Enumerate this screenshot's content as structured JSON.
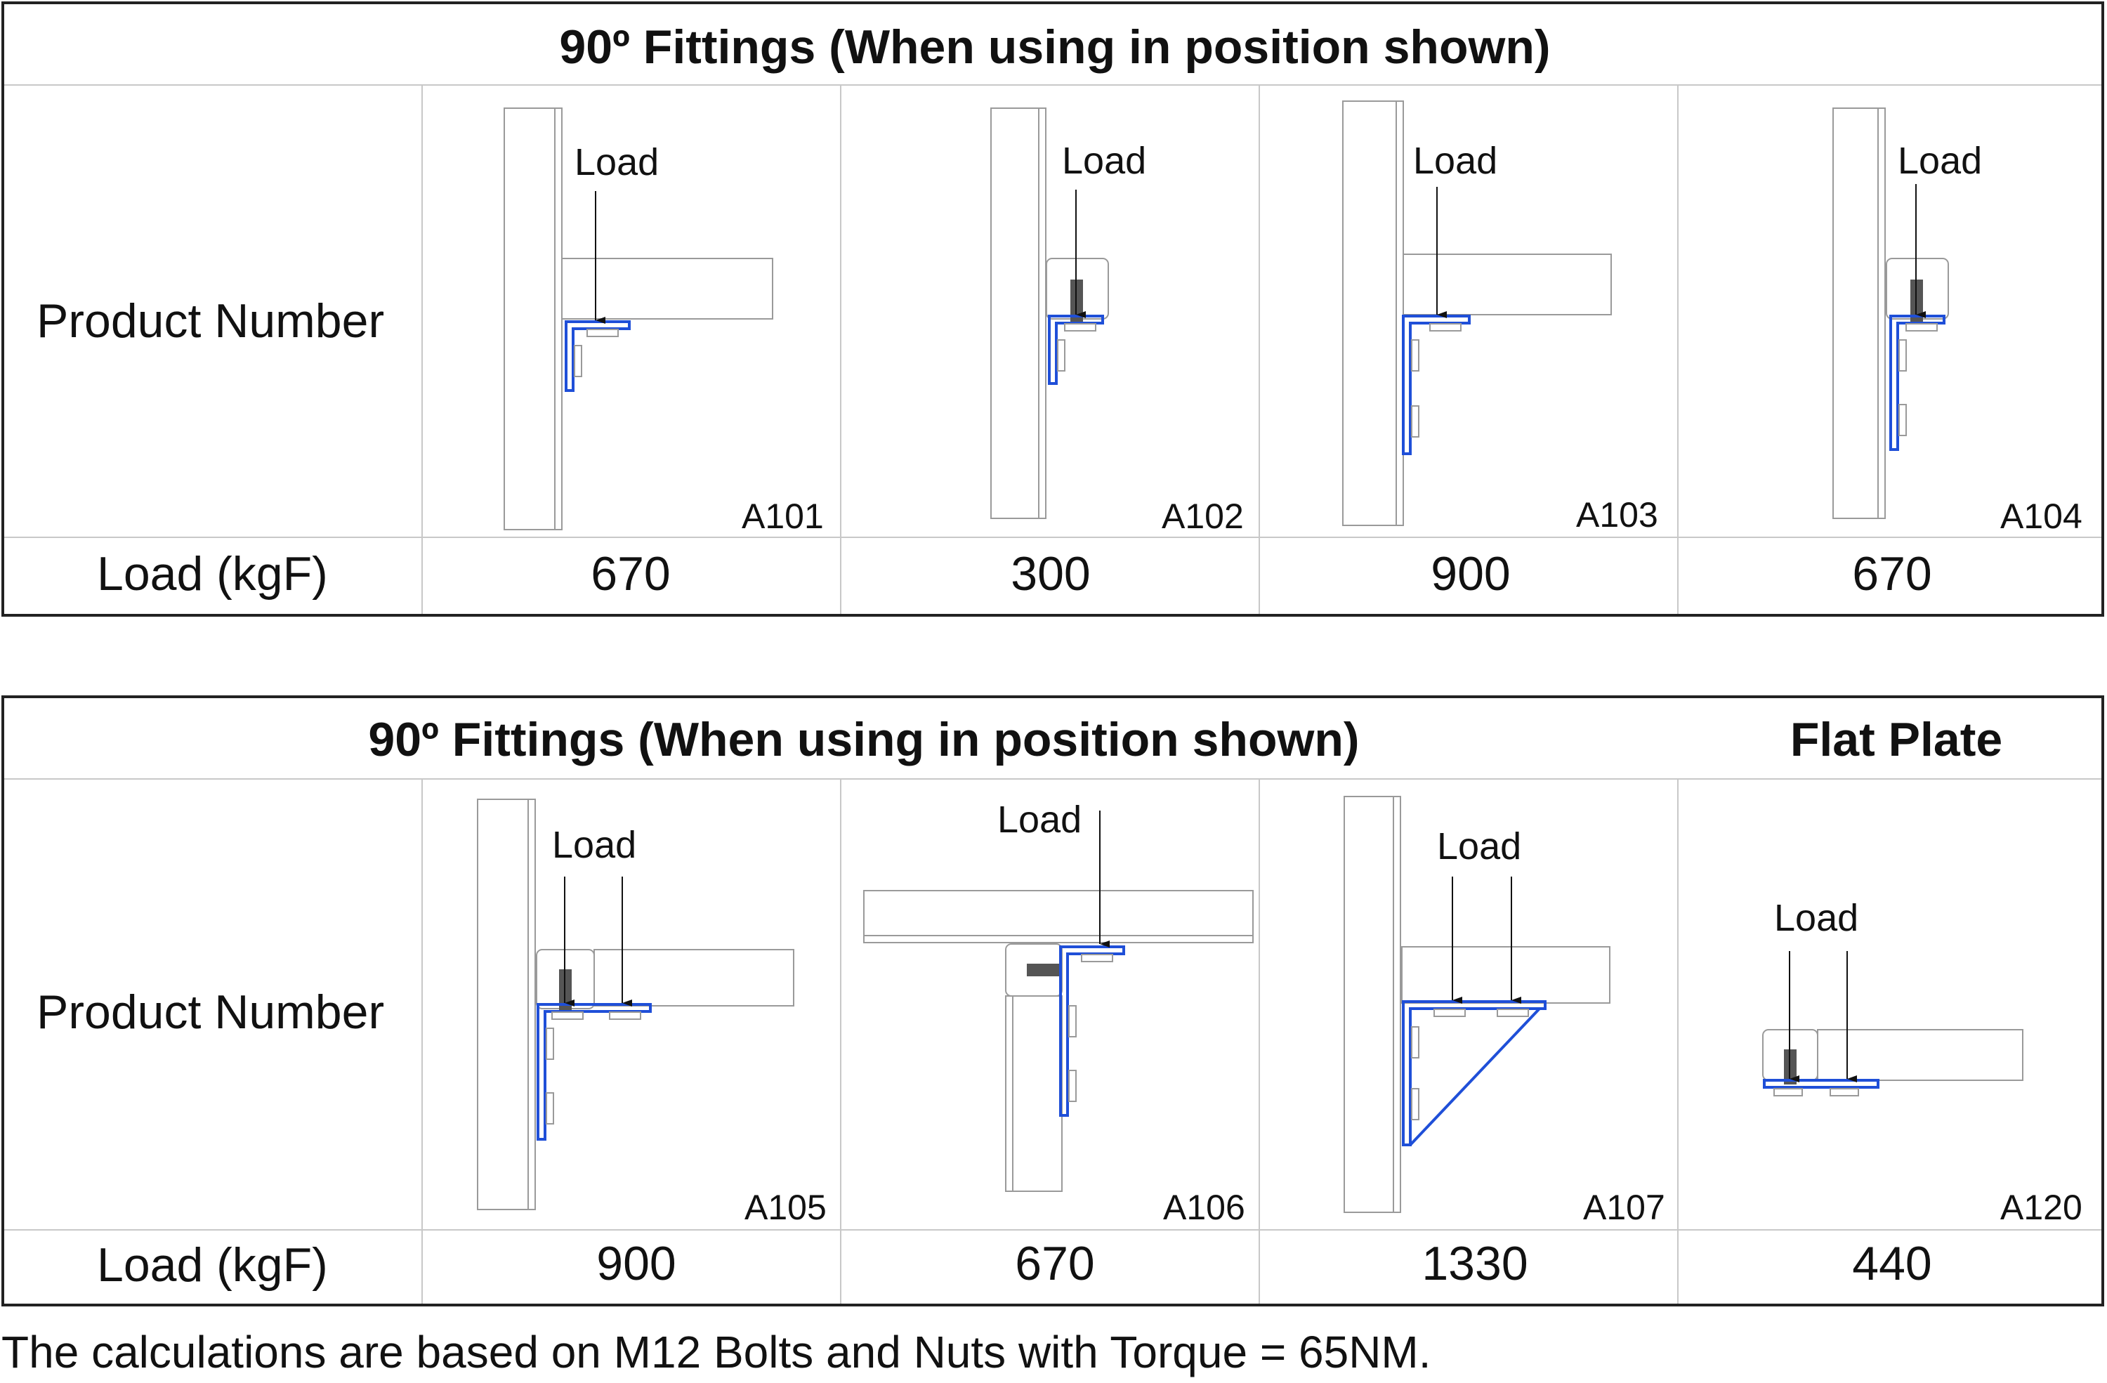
{
  "tables": [
    {
      "title": "90º Fittings (When using in position shown)",
      "row_labels": {
        "product": "Product Number",
        "load": "Load (kgF)"
      },
      "load_label": "Load",
      "products": [
        {
          "number": "A101",
          "load": "670"
        },
        {
          "number": "A102",
          "load": "300"
        },
        {
          "number": "A103",
          "load": "900"
        },
        {
          "number": "A104",
          "load": "670"
        }
      ]
    },
    {
      "title": "90º Fittings (When using in position shown)",
      "title_right": "Flat Plate",
      "row_labels": {
        "product": "Product Number",
        "load": "Load (kgF)"
      },
      "load_label": "Load",
      "products": [
        {
          "number": "A105",
          "load": "900"
        },
        {
          "number": "A106",
          "load": "670"
        },
        {
          "number": "A107",
          "load": "1330"
        },
        {
          "number": "A120",
          "load": "440"
        }
      ]
    }
  ],
  "footnote": "The calculations are based on M12 Bolts and Nuts with Torque = 65NM.",
  "colors": {
    "fitting": "#1f4fd8",
    "outline": "#9a9a9a",
    "border": "#222222"
  }
}
